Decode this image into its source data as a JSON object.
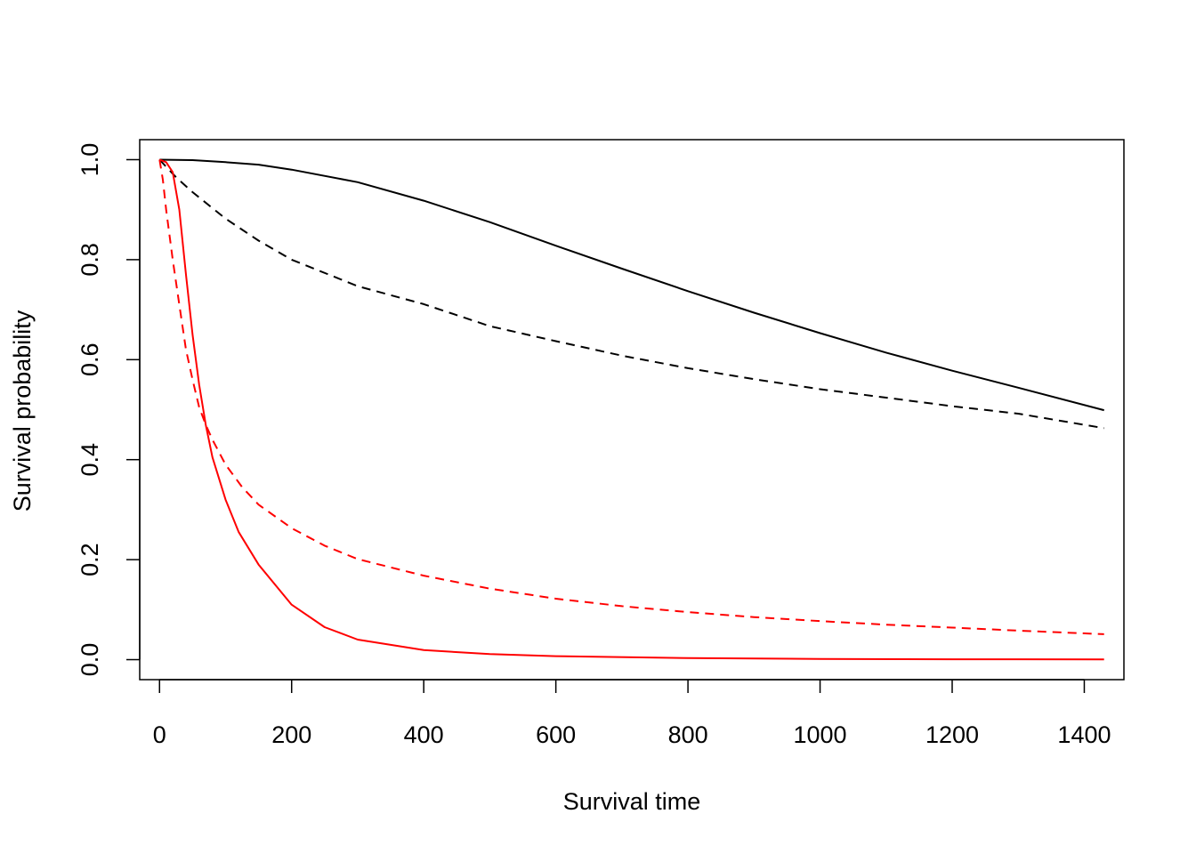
{
  "chart_data": {
    "type": "line",
    "title": "",
    "xlabel": "Survival time",
    "ylabel": "Survival probability",
    "xlim": [
      -30,
      1460
    ],
    "ylim": [
      -0.04,
      1.04
    ],
    "x_ticks": [
      0,
      200,
      400,
      600,
      800,
      1000,
      1200,
      1400
    ],
    "y_ticks": [
      0.0,
      0.2,
      0.4,
      0.6,
      0.8,
      1.0
    ],
    "y_tick_labels": [
      "0.0",
      "0.2",
      "0.4",
      "0.6",
      "0.8",
      "1.0"
    ],
    "grid": false,
    "legend": "none",
    "series": [
      {
        "color": "#000000",
        "dash": "solid",
        "x": [
          0,
          50,
          100,
          150,
          200,
          300,
          400,
          500,
          600,
          700,
          800,
          900,
          1000,
          1100,
          1200,
          1300,
          1430
        ],
        "y": [
          1.0,
          0.999,
          0.995,
          0.99,
          0.98,
          0.955,
          0.918,
          0.875,
          0.828,
          0.782,
          0.737,
          0.694,
          0.653,
          0.614,
          0.578,
          0.544,
          0.499
        ]
      },
      {
        "color": "#000000",
        "dash": "dashed",
        "x": [
          0,
          25,
          50,
          100,
          150,
          200,
          300,
          400,
          500,
          600,
          700,
          800,
          900,
          1000,
          1100,
          1200,
          1300,
          1430
        ],
        "y": [
          1.0,
          0.965,
          0.935,
          0.882,
          0.838,
          0.8,
          0.747,
          0.711,
          0.667,
          0.637,
          0.608,
          0.583,
          0.561,
          0.541,
          0.524,
          0.507,
          0.492,
          0.463
        ]
      },
      {
        "color": "#ff0000",
        "dash": "solid",
        "x": [
          0,
          10,
          20,
          30,
          40,
          50,
          60,
          70,
          80,
          100,
          120,
          150,
          200,
          250,
          300,
          400,
          500,
          600,
          800,
          1000,
          1200,
          1430
        ],
        "y": [
          1.0,
          0.995,
          0.975,
          0.9,
          0.77,
          0.65,
          0.55,
          0.47,
          0.405,
          0.32,
          0.255,
          0.19,
          0.11,
          0.065,
          0.04,
          0.019,
          0.011,
          0.007,
          0.003,
          0.0015,
          0.0008,
          0.0003
        ]
      },
      {
        "color": "#ff0000",
        "dash": "dashed",
        "x": [
          0,
          5,
          10,
          20,
          30,
          40,
          50,
          60,
          70,
          80,
          100,
          125,
          150,
          200,
          250,
          300,
          400,
          500,
          600,
          700,
          800,
          900,
          1000,
          1100,
          1200,
          1300,
          1430
        ],
        "y": [
          1.0,
          0.96,
          0.9,
          0.8,
          0.71,
          0.62,
          0.56,
          0.505,
          0.47,
          0.44,
          0.39,
          0.345,
          0.31,
          0.263,
          0.228,
          0.201,
          0.168,
          0.142,
          0.122,
          0.107,
          0.095,
          0.085,
          0.077,
          0.07,
          0.064,
          0.058,
          0.051
        ]
      }
    ]
  }
}
